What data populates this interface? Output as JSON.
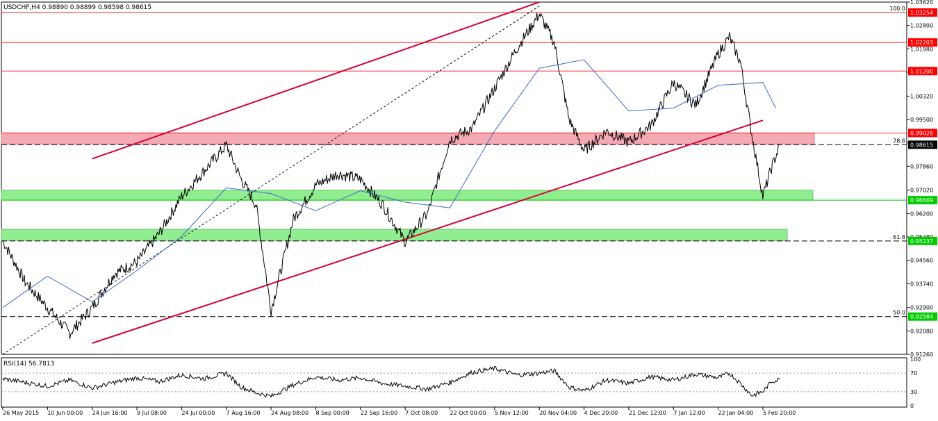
{
  "header": {
    "title": "USDCHF,H4 0.98890 0.98899 0.98598 0.98615"
  },
  "rsi_panel": {
    "title": "RSI(14) 56.7813"
  },
  "colors": {
    "background": "#ffffff",
    "price": "#000000",
    "moving_average": "#3a6cc8",
    "level_lines": "#ff2020",
    "trend_channel": "#d6003a",
    "resistance_zone": "#f4aab4",
    "support_zone": "#90ee90",
    "label_red": "#ff0000",
    "label_green": "#00cc00"
  },
  "chart_data": [
    {
      "type": "line",
      "title": "USDCHF,H4",
      "ohlc": {
        "open": "0.98890",
        "high": "0.98899",
        "low": "0.98598",
        "close": "0.98615"
      },
      "ylim": [
        0.9126,
        1.0362
      ],
      "y_ticks": [
        "1.03620",
        "1.02800",
        "1.01980",
        "1.01160",
        "1.00320",
        "0.99500",
        "0.98680",
        "0.97860",
        "0.97020",
        "0.96200",
        "0.95380",
        "0.94560",
        "0.93740",
        "0.92900",
        "0.92080",
        "0.91260"
      ],
      "x_ticks": [
        "26 May 2015",
        "10 Jun 00:00",
        "24 Jun 16:00",
        "9 Jul 08:00",
        "24 Jul 00:00",
        "7 Aug 16:00",
        "24 Aug 08:00",
        "8 Sep 00:00",
        "22 Sep 16:00",
        "7 Oct 08:00",
        "22 Oct 00:00",
        "5 Nov 12:00",
        "20 Nov 04:00",
        "4 Dec 20:00",
        "21 Dec 12:00",
        "7 Jan 12:00",
        "22 Jan 04:00",
        "5 Feb 20:00"
      ],
      "series": [
        {
          "kind": "price",
          "x": [
            "26 May 2015",
            "3 Jun",
            "10 Jun 00:00",
            "16 Jun",
            "24 Jun 16:00",
            "1 Jul",
            "9 Jul 08:00",
            "17 Jul",
            "24 Jul 00:00",
            "31 Jul",
            "7 Aug 16:00",
            "14 Aug",
            "20 Aug",
            "24 Aug 08:00",
            "31 Aug",
            "8 Sep 00:00",
            "15 Sep",
            "22 Sep 16:00",
            "30 Sep",
            "7 Oct 08:00",
            "15 Oct",
            "22 Oct 00:00",
            "28 Oct",
            "5 Nov 12:00",
            "12 Nov",
            "20 Nov 04:00",
            "24 Nov",
            "27 Nov",
            "4 Dec 20:00",
            "12 Dec",
            "21 Dec 12:00",
            "30 Dec",
            "7 Jan 12:00",
            "14 Jan",
            "22 Jan 04:00",
            "26 Jan",
            "29 Jan",
            "2 Feb",
            "5 Feb 20:00",
            "9 Feb",
            "12 Feb"
          ],
          "values": [
            0.9525,
            0.938,
            0.929,
            0.92,
            0.929,
            0.941,
            0.945,
            0.955,
            0.968,
            0.977,
            0.986,
            0.974,
            0.965,
            0.928,
            0.96,
            0.972,
            0.976,
            0.974,
            0.965,
            0.952,
            0.962,
            0.988,
            0.992,
            1.006,
            1.02,
            1.032,
            1.022,
            0.995,
            0.984,
            0.991,
            0.987,
            0.993,
            1.008,
            1.0,
            1.018,
            1.024,
            1.015,
            0.99,
            0.968,
            0.978,
            0.9862
          ]
        },
        {
          "kind": "moving_average",
          "x": [
            "26 May 2015",
            "10 Jun 00:00",
            "24 Jun 16:00",
            "9 Jul 08:00",
            "24 Jul 00:00",
            "7 Aug 16:00",
            "24 Aug 08:00",
            "8 Sep 00:00",
            "22 Sep 16:00",
            "7 Oct 08:00",
            "22 Oct 00:00",
            "5 Nov 12:00",
            "20 Nov 04:00",
            "4 Dec 20:00",
            "21 Dec 12:00",
            "7 Jan 12:00",
            "22 Jan 04:00",
            "5 Feb 20:00",
            "12 Feb"
          ],
          "values": [
            0.929,
            0.94,
            0.931,
            0.942,
            0.954,
            0.971,
            0.969,
            0.963,
            0.97,
            0.966,
            0.964,
            0.991,
            1.013,
            1.016,
            0.998,
            0.999,
            1.007,
            1.008,
            0.999
          ]
        }
      ],
      "levels": [
        {
          "price": 1.03254,
          "label": "1.03254",
          "fib": "100.0",
          "style": "solid-red"
        },
        {
          "price": 1.02203,
          "label": "1.02203",
          "style": "solid-red"
        },
        {
          "price": 1.012,
          "label": "1.01200",
          "style": "solid-red"
        },
        {
          "price": 0.99026,
          "label": "0.99026",
          "style": "solid-red"
        },
        {
          "price": 0.98615,
          "label": "0.98615",
          "fib": "78.6",
          "style": "dashed-black"
        },
        {
          "price": 0.96669,
          "label": "0.96669",
          "style": "solid-green"
        },
        {
          "price": 0.95237,
          "label": "0.95237",
          "fib": "61.8",
          "style": "dashed-black"
        },
        {
          "price": 0.92584,
          "label": "0.92584",
          "fib": "50.0",
          "style": "dashed-black"
        }
      ],
      "zones": [
        {
          "from": 0.9864,
          "to": 0.9903,
          "color": "resistance_zone"
        },
        {
          "from": 0.9667,
          "to": 0.9702,
          "color": "support_zone"
        },
        {
          "from": 0.9525,
          "to": 0.9565,
          "color": "support_zone"
        }
      ],
      "trendlines": [
        {
          "from": [
            "24 Jun 16:00",
            0.9812
          ],
          "to": [
            "20 Nov 04:00",
            1.0362
          ]
        },
        {
          "from": [
            "24 Jun 16:00",
            0.9165
          ],
          "to": [
            "5 Feb 20:00",
            0.9947
          ]
        },
        {
          "from": [
            "26 May 2015",
            0.9126
          ],
          "to": [
            "20 Nov 04:00",
            1.0348
          ],
          "style": "dotted"
        }
      ]
    },
    {
      "type": "line",
      "title": "RSI(14)",
      "ylim": [
        0,
        100
      ],
      "y_ticks": [
        "100",
        "70",
        "30",
        "0"
      ],
      "series": [
        {
          "name": "RSI(14)",
          "values": [
            58,
            50,
            42,
            55,
            38,
            50,
            60,
            52,
            66,
            58,
            70,
            40,
            28,
            20,
            45,
            62,
            55,
            60,
            48,
            42,
            36,
            50,
            72,
            80,
            66,
            70,
            75,
            40,
            32,
            55,
            48,
            62,
            55,
            68,
            60,
            70,
            48,
            22,
            30,
            52,
            56.78
          ]
        }
      ]
    }
  ]
}
